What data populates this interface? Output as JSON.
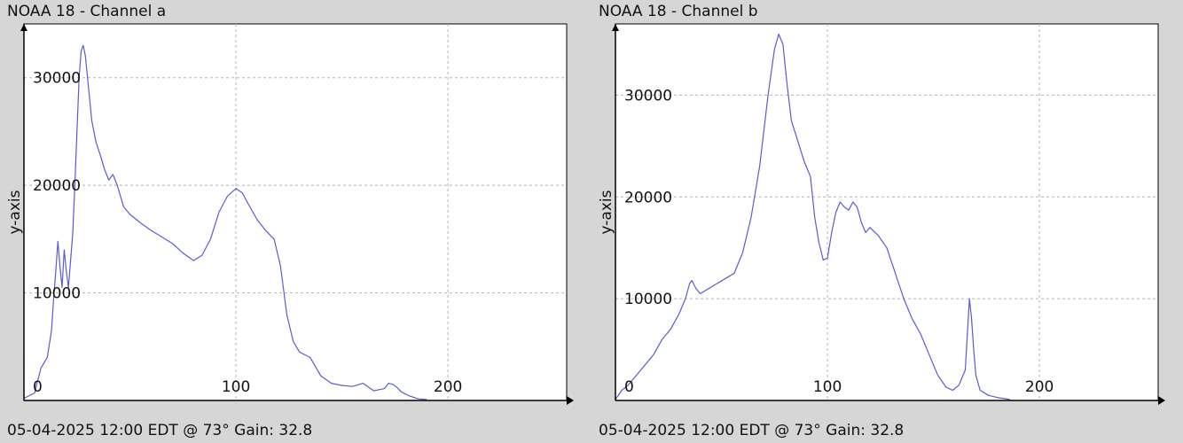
{
  "panels": [
    {
      "title": "NOAA 18 - Channel a",
      "footer": "05-04-2025 12:00 EDT @ 73° Gain: 32.8"
    },
    {
      "title": "NOAA 18 - Channel b",
      "footer": "05-04-2025 12:00 EDT @ 73° Gain: 32.8"
    }
  ],
  "colors": {
    "background": "#d6d6d6",
    "plot_background": "#ffffff",
    "line": "#5a5ad6",
    "grid": "#b4b4b4",
    "axis": "#000000"
  },
  "chart_data": [
    {
      "type": "line",
      "title": "NOAA 18 - Channel a",
      "ylabel": "y-axis",
      "xlabel": "",
      "xlim": [
        0,
        256
      ],
      "ylim": [
        0,
        35000
      ],
      "xticks": [
        0,
        100,
        200
      ],
      "xtick_labels": [
        "0",
        "100",
        "200"
      ],
      "yticks": [
        10000,
        20000,
        30000
      ],
      "ytick_labels": [
        "10000",
        "20000",
        "30000"
      ],
      "grid": true,
      "series": [
        {
          "values": [
            [
              0,
              200
            ],
            [
              5,
              700
            ],
            [
              8,
              3000
            ],
            [
              11,
              4000
            ],
            [
              13,
              6500
            ],
            [
              14,
              9500
            ],
            [
              15,
              12000
            ],
            [
              16,
              14800
            ],
            [
              17,
              12500
            ],
            [
              18,
              10500
            ],
            [
              19,
              14000
            ],
            [
              20,
              12000
            ],
            [
              21,
              10500
            ],
            [
              22,
              13000
            ],
            [
              23,
              15500
            ],
            [
              24,
              20000
            ],
            [
              25,
              25000
            ],
            [
              26,
              30000
            ],
            [
              27,
              32500
            ],
            [
              28,
              33000
            ],
            [
              29,
              32000
            ],
            [
              30,
              30000
            ],
            [
              31,
              28000
            ],
            [
              32,
              26000
            ],
            [
              34,
              24000
            ],
            [
              36,
              22800
            ],
            [
              38,
              21500
            ],
            [
              40,
              20500
            ],
            [
              42,
              21000
            ],
            [
              44,
              20000
            ],
            [
              47,
              18000
            ],
            [
              50,
              17300
            ],
            [
              55,
              16500
            ],
            [
              60,
              15800
            ],
            [
              65,
              15200
            ],
            [
              70,
              14600
            ],
            [
              75,
              13700
            ],
            [
              80,
              13000
            ],
            [
              84,
              13500
            ],
            [
              88,
              15000
            ],
            [
              92,
              17500
            ],
            [
              96,
              19000
            ],
            [
              100,
              19700
            ],
            [
              103,
              19300
            ],
            [
              106,
              18200
            ],
            [
              110,
              16800
            ],
            [
              114,
              15800
            ],
            [
              118,
              15000
            ],
            [
              121,
              12500
            ],
            [
              124,
              8000
            ],
            [
              127,
              5500
            ],
            [
              130,
              4500
            ],
            [
              135,
              4000
            ],
            [
              140,
              2300
            ],
            [
              145,
              1600
            ],
            [
              150,
              1400
            ],
            [
              155,
              1300
            ],
            [
              160,
              1600
            ],
            [
              165,
              900
            ],
            [
              170,
              1100
            ],
            [
              172,
              1600
            ],
            [
              174,
              1500
            ],
            [
              176,
              1200
            ],
            [
              178,
              800
            ],
            [
              182,
              400
            ],
            [
              186,
              150
            ],
            [
              190,
              100
            ]
          ]
        }
      ]
    },
    {
      "type": "line",
      "title": "NOAA 18 - Channel b",
      "ylabel": "y-axis",
      "xlabel": "",
      "xlim": [
        0,
        256
      ],
      "ylim": [
        0,
        37000
      ],
      "xticks": [
        0,
        100,
        200
      ],
      "xtick_labels": [
        "0",
        "100",
        "200"
      ],
      "yticks": [
        10000,
        20000,
        30000
      ],
      "ytick_labels": [
        "10000",
        "20000",
        "30000"
      ],
      "grid": true,
      "series": [
        {
          "values": [
            [
              0,
              100
            ],
            [
              3,
              1000
            ],
            [
              6,
              1500
            ],
            [
              10,
              2500
            ],
            [
              14,
              3500
            ],
            [
              18,
              4500
            ],
            [
              22,
              6000
            ],
            [
              26,
              7000
            ],
            [
              30,
              8500
            ],
            [
              33,
              10000
            ],
            [
              35,
              11500
            ],
            [
              36,
              11800
            ],
            [
              38,
              11000
            ],
            [
              40,
              10500
            ],
            [
              44,
              11000
            ],
            [
              48,
              11500
            ],
            [
              52,
              12000
            ],
            [
              56,
              12500
            ],
            [
              60,
              14500
            ],
            [
              64,
              18000
            ],
            [
              68,
              23000
            ],
            [
              72,
              30000
            ],
            [
              75,
              34500
            ],
            [
              77,
              36000
            ],
            [
              79,
              35000
            ],
            [
              81,
              31000
            ],
            [
              83,
              27500
            ],
            [
              86,
              25500
            ],
            [
              89,
              23500
            ],
            [
              92,
              22000
            ],
            [
              94,
              18000
            ],
            [
              96,
              15500
            ],
            [
              98,
              13800
            ],
            [
              100,
              14000
            ],
            [
              102,
              16500
            ],
            [
              104,
              18500
            ],
            [
              106,
              19500
            ],
            [
              108,
              19000
            ],
            [
              110,
              18700
            ],
            [
              112,
              19500
            ],
            [
              114,
              19000
            ],
            [
              116,
              17500
            ],
            [
              118,
              16500
            ],
            [
              120,
              17000
            ],
            [
              124,
              16200
            ],
            [
              128,
              15000
            ],
            [
              132,
              12500
            ],
            [
              136,
              10000
            ],
            [
              140,
              8000
            ],
            [
              144,
              6500
            ],
            [
              148,
              4500
            ],
            [
              152,
              2500
            ],
            [
              156,
              1300
            ],
            [
              159,
              1000
            ],
            [
              162,
              1500
            ],
            [
              165,
              3000
            ],
            [
              166,
              6500
            ],
            [
              167,
              10000
            ],
            [
              168,
              8000
            ],
            [
              169,
              5000
            ],
            [
              170,
              2500
            ],
            [
              172,
              1000
            ],
            [
              176,
              500
            ],
            [
              180,
              300
            ],
            [
              186,
              100
            ]
          ]
        }
      ]
    }
  ]
}
